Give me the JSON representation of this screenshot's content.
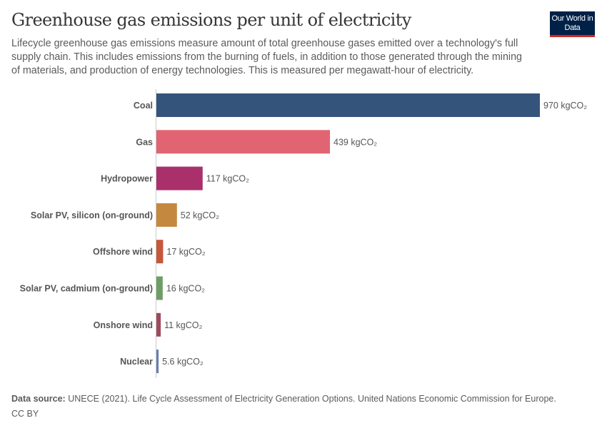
{
  "header": {
    "title": "Greenhouse gas emissions per unit of electricity",
    "subtitle": "Lifecycle greenhouse gas emissions measure amount of total greenhouse gases emitted over a technology's full supply chain. This includes emissions from the burning of fuels, in addition to those generated through the mining of materials, and production of energy technologies. This is measured per megawatt-hour of electricity.",
    "logo": "Our World in Data"
  },
  "chart_data": {
    "type": "bar",
    "orientation": "horizontal",
    "categories": [
      "Coal",
      "Gas",
      "Hydropower",
      "Solar PV, silicon (on-ground)",
      "Offshore wind",
      "Solar PV, cadmium (on-ground)",
      "Onshore wind",
      "Nuclear"
    ],
    "values": [
      970,
      439,
      117,
      52,
      17,
      16,
      11,
      5.6
    ],
    "value_labels": [
      "970 kgCO₂",
      "439 kgCO₂",
      "117 kgCO₂",
      "52 kgCO₂",
      "17 kgCO₂",
      "16 kgCO₂",
      "11 kgCO₂",
      "5.6 kgCO₂"
    ],
    "unit": "kgCO₂",
    "colors": [
      "#34547c",
      "#e06472",
      "#a9306b",
      "#c4883f",
      "#c7573a",
      "#6f9d66",
      "#9e4a5c",
      "#6b7fae"
    ],
    "xlim": [
      0,
      970
    ],
    "grid": false
  },
  "footer": {
    "source_label": "Data source:",
    "source_text": "UNECE (2021). Life Cycle Assessment of Electricity Generation Options. United Nations Economic Commission for Europe.",
    "license": "CC BY"
  }
}
